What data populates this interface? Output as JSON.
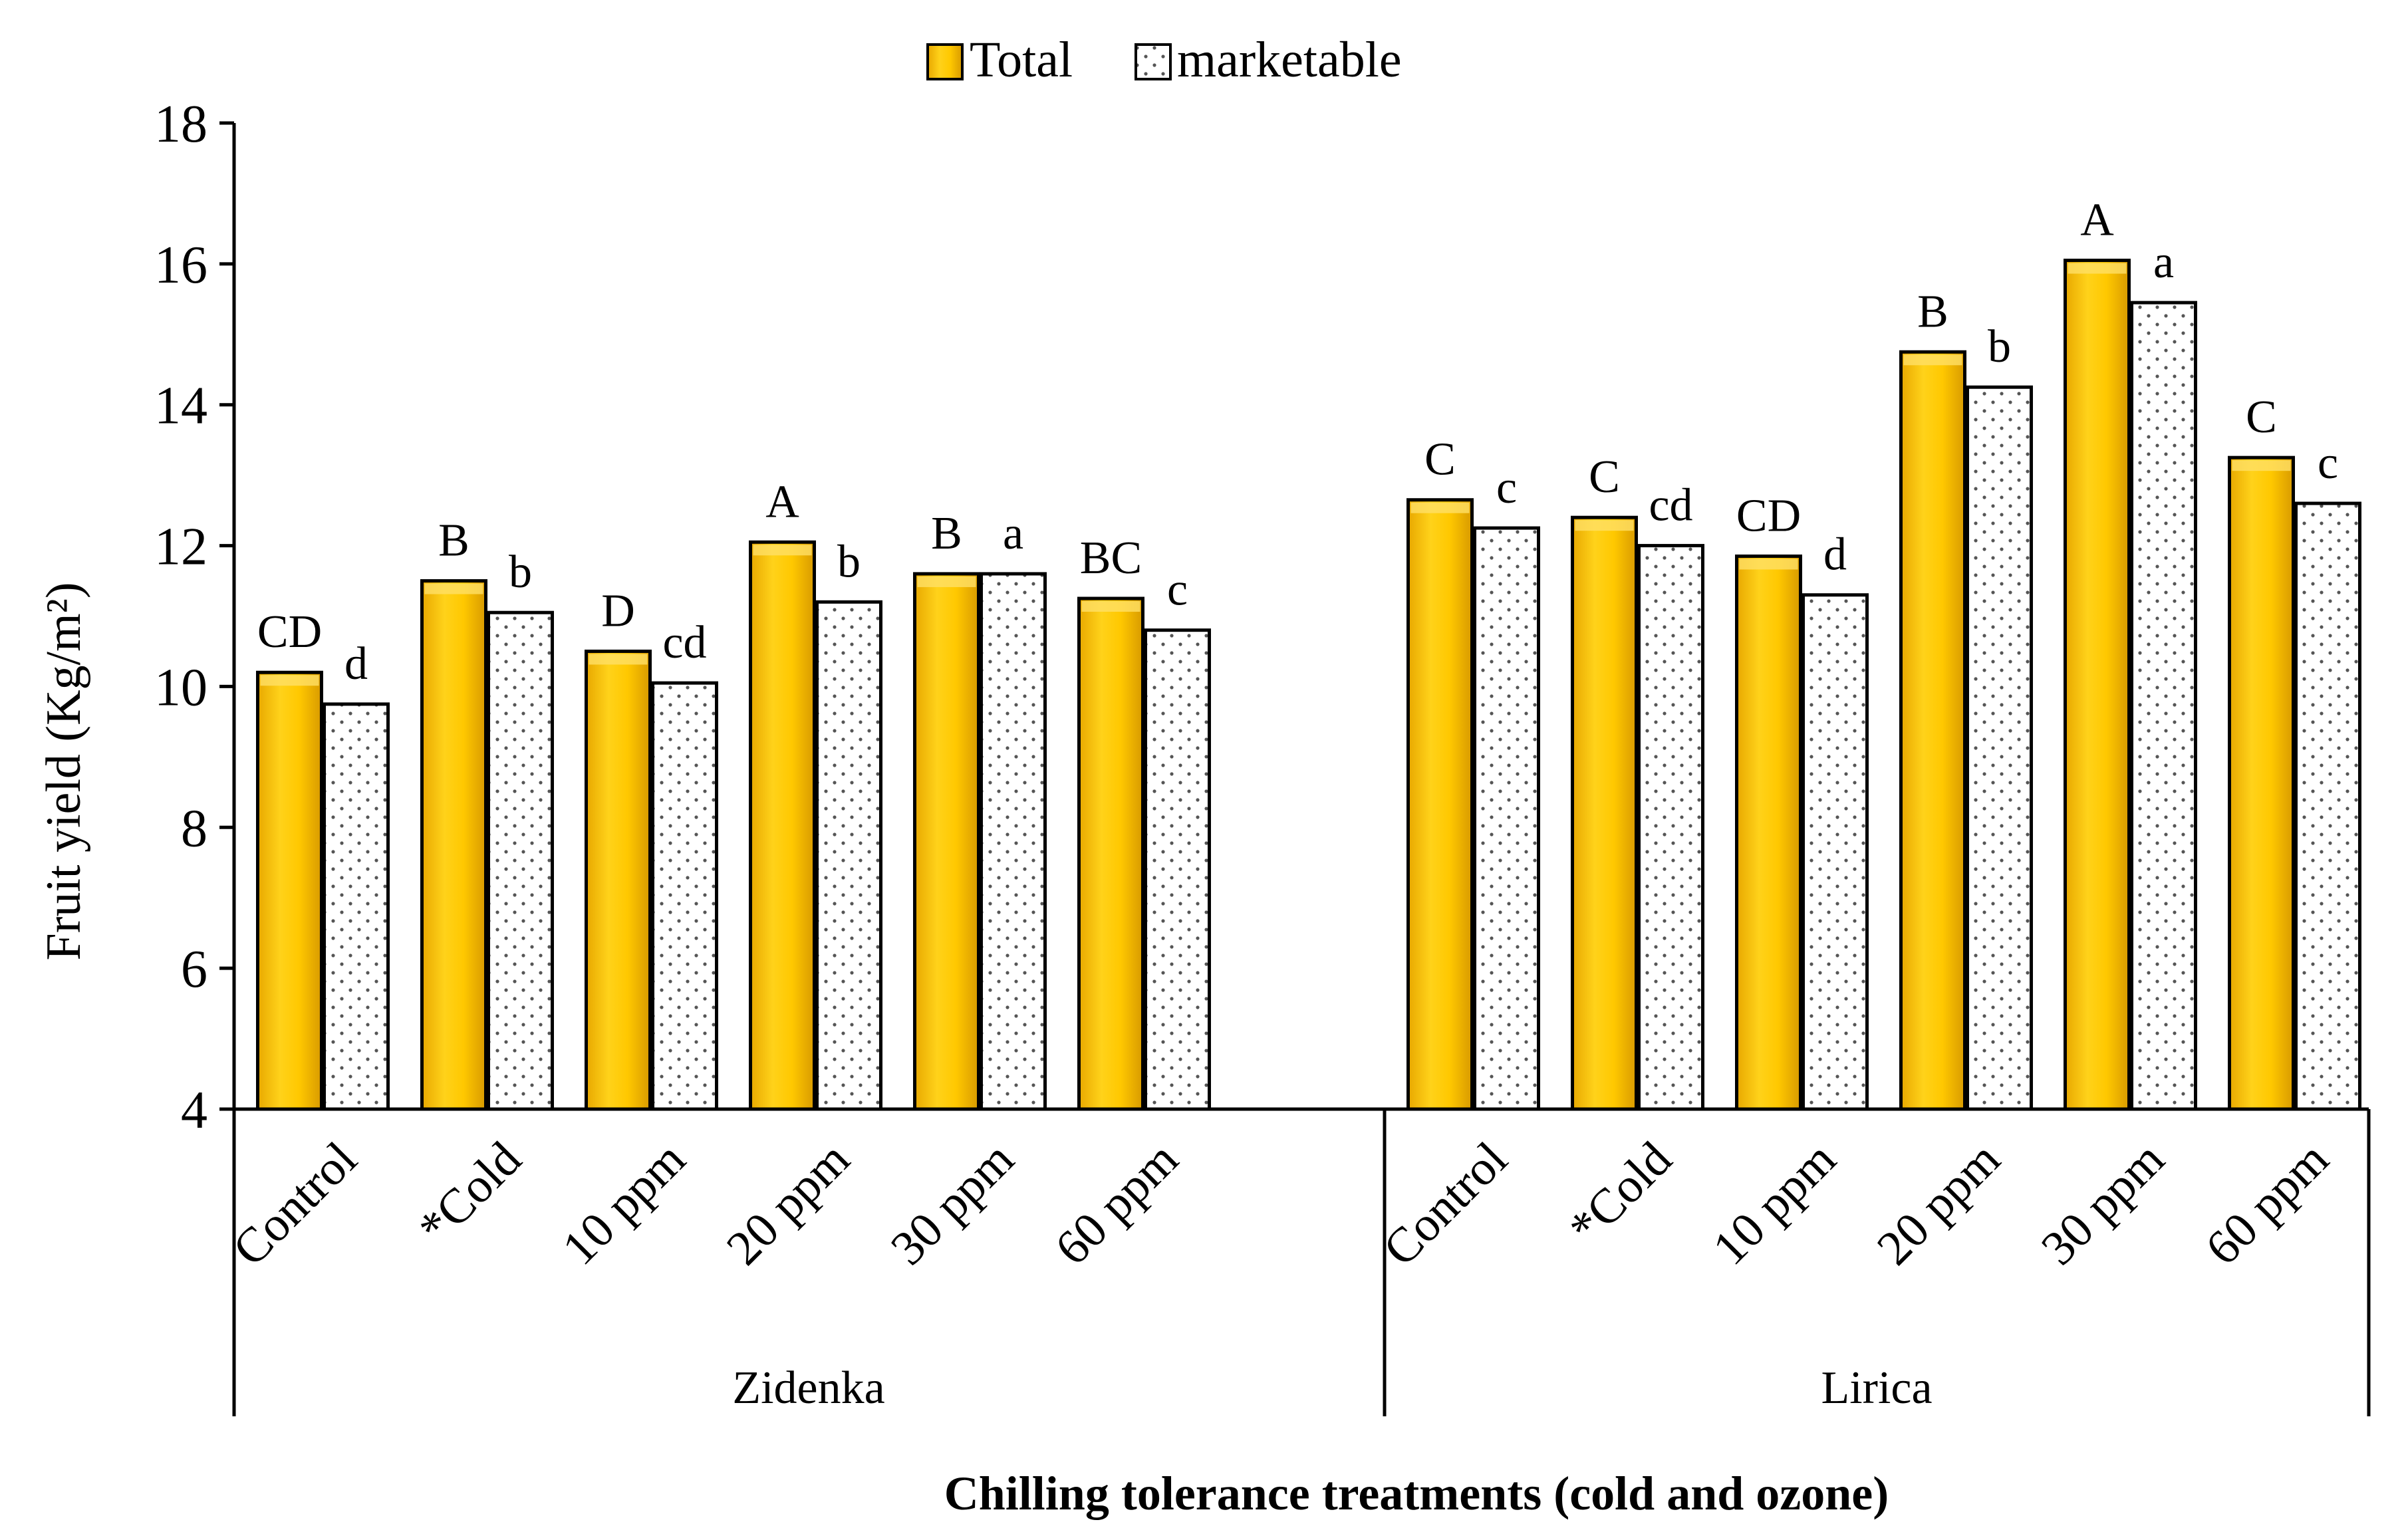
{
  "chart_data": {
    "type": "bar",
    "title": "",
    "ylabel": "Fruit yield (Kg/m²)",
    "xlabel": "Chilling tolerance treatments (cold and ozone)",
    "ylim": [
      4,
      18
    ],
    "yticks": [
      4,
      6,
      8,
      10,
      12,
      14,
      16,
      18
    ],
    "legend": {
      "placement": "top-center"
    },
    "colors": {
      "total": "#FFC800",
      "marketable": "#FFFFFF",
      "axis": "#000000",
      "dots": "#555555"
    },
    "groups": [
      {
        "name": "Zidenka",
        "categories": [
          "Control",
          "*Cold",
          "10 ppm",
          "20 ppm",
          "30 ppm",
          "60 ppm"
        ],
        "series": [
          {
            "name": "Total",
            "values": [
              10.2,
              11.5,
              10.5,
              12.05,
              11.6,
              11.25
            ],
            "letters": [
              "CD",
              "B",
              "D",
              "A",
              "B",
              "BC"
            ]
          },
          {
            "name": "marketable",
            "values": [
              9.75,
              11.05,
              10.05,
              11.2,
              11.6,
              10.8
            ],
            "letters": [
              "d",
              "b",
              "cd",
              "b",
              "a",
              "c"
            ]
          }
        ]
      },
      {
        "name": "Lirica",
        "categories": [
          "Control",
          "*Cold",
          "10 ppm",
          "20 ppm",
          "30 ppm",
          "60 ppm"
        ],
        "series": [
          {
            "name": "Total",
            "values": [
              12.65,
              12.4,
              11.85,
              14.75,
              16.05,
              13.25
            ],
            "letters": [
              "C",
              "C",
              "CD",
              "B",
              "A",
              "C"
            ]
          },
          {
            "name": "marketable",
            "values": [
              12.25,
              12.0,
              11.3,
              14.25,
              15.45,
              12.6
            ],
            "letters": [
              "c",
              "cd",
              "d",
              "b",
              "a",
              "c"
            ]
          }
        ]
      }
    ]
  }
}
